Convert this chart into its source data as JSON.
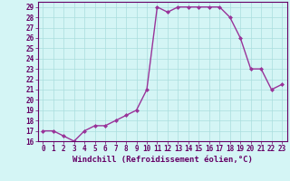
{
  "x": [
    0,
    1,
    2,
    3,
    4,
    5,
    6,
    7,
    8,
    9,
    10,
    11,
    12,
    13,
    14,
    15,
    16,
    17,
    18,
    19,
    20,
    21,
    22,
    23
  ],
  "y": [
    17,
    17,
    16.5,
    16,
    17,
    17.5,
    17.5,
    18,
    18.5,
    19,
    21,
    29,
    28.5,
    29,
    29,
    29,
    29,
    29,
    28,
    26,
    23,
    23,
    21,
    21.5
  ],
  "line_color": "#993399",
  "marker": "D",
  "marker_size": 2,
  "linewidth": 1.0,
  "xlabel": "Windchill (Refroidissement éolien,°C)",
  "xlim": [
    -0.5,
    23.5
  ],
  "ylim": [
    16,
    29.5
  ],
  "yticks": [
    16,
    17,
    18,
    19,
    20,
    21,
    22,
    23,
    24,
    25,
    26,
    27,
    28,
    29
  ],
  "xticks": [
    0,
    1,
    2,
    3,
    4,
    5,
    6,
    7,
    8,
    9,
    10,
    11,
    12,
    13,
    14,
    15,
    16,
    17,
    18,
    19,
    20,
    21,
    22,
    23
  ],
  "bg_color": "#d4f5f5",
  "grid_color": "#aadddd",
  "label_color": "#660066",
  "tick_label_size": 5.5,
  "xlabel_size": 6.5
}
